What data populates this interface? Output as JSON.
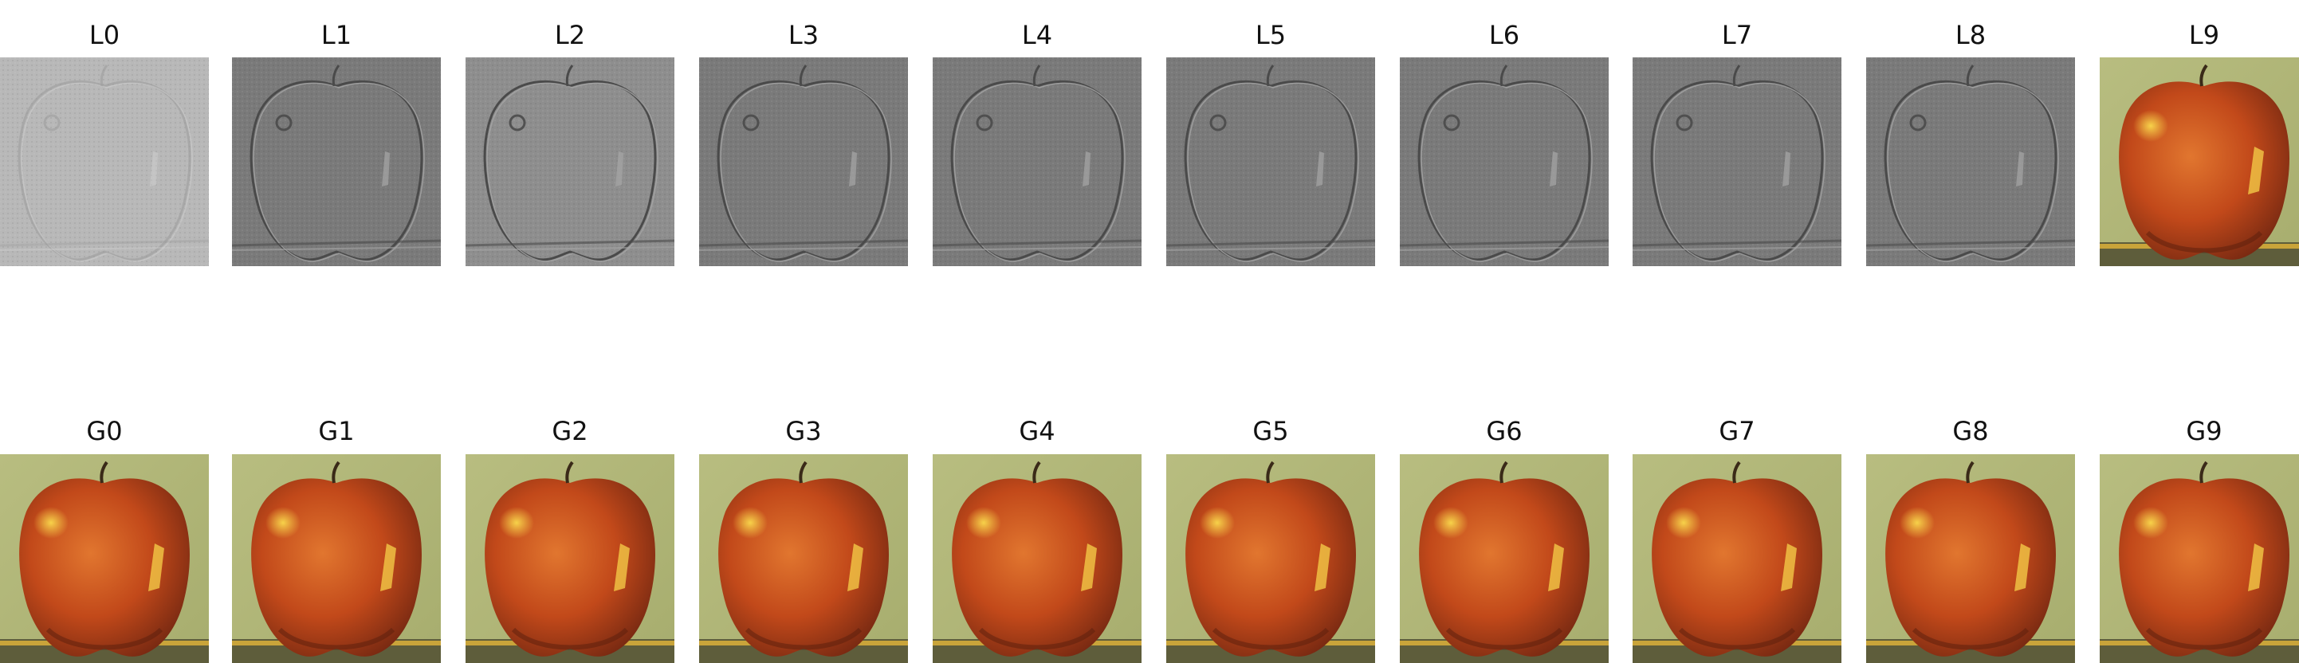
{
  "laplacian_levels": [
    "L0",
    "L1",
    "L2",
    "L3",
    "L4",
    "L5",
    "L6",
    "L7",
    "L8",
    "L9"
  ],
  "gaussian_levels": [
    "G0",
    "G1",
    "G2",
    "G3",
    "G4",
    "G5",
    "G6",
    "G7",
    "G8",
    "G9"
  ],
  "colors": {
    "laplacian_gray": "#7a7a7a",
    "laplacian_l0_gray": "#b8b8b8",
    "laplacian_l2_gray": "#8e8e8e",
    "apple_red": "#c2491a",
    "apple_dark": "#7a2a12",
    "highlight": "#f7d24a",
    "background_green": "#a7ad6e"
  }
}
